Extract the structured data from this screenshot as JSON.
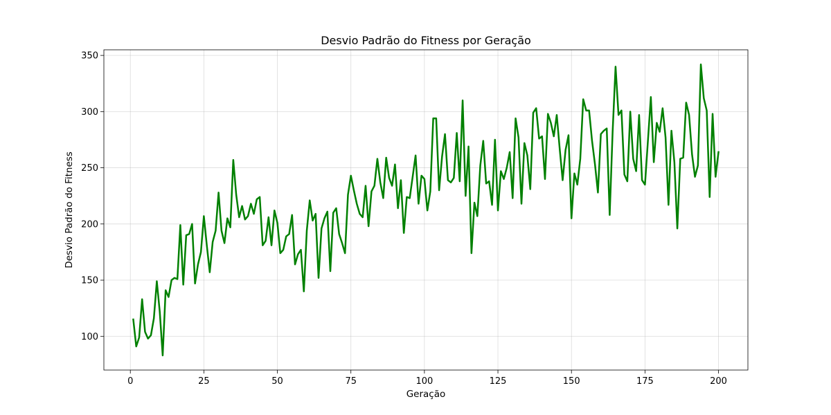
{
  "chart_data": {
    "type": "line",
    "title": "Desvio Padrão do Fitness por Geração",
    "xlabel": "Geração",
    "ylabel": "Desvio Padrão do Fitness",
    "xlim": [
      -9,
      210
    ],
    "ylim": [
      70,
      355
    ],
    "xticks": [
      0,
      25,
      50,
      75,
      100,
      125,
      150,
      175,
      200
    ],
    "yticks": [
      100,
      150,
      200,
      250,
      300,
      350
    ],
    "grid": true,
    "legend": "none",
    "series": [
      {
        "color": "#008000",
        "x": [
          1,
          2,
          3,
          4,
          5,
          6,
          7,
          8,
          9,
          10,
          11,
          12,
          13,
          14,
          15,
          16,
          17,
          18,
          19,
          20,
          21,
          22,
          23,
          24,
          25,
          26,
          27,
          28,
          29,
          30,
          31,
          32,
          33,
          34,
          35,
          36,
          37,
          38,
          39,
          40,
          41,
          42,
          43,
          44,
          45,
          46,
          47,
          48,
          49,
          50,
          51,
          52,
          53,
          54,
          55,
          56,
          57,
          58,
          59,
          60,
          61,
          62,
          63,
          64,
          65,
          66,
          67,
          68,
          69,
          70,
          71,
          72,
          73,
          74,
          75,
          76,
          77,
          78,
          79,
          80,
          81,
          82,
          83,
          84,
          85,
          86,
          87,
          88,
          89,
          90,
          91,
          92,
          93,
          94,
          95,
          96,
          97,
          98,
          99,
          100,
          101,
          102,
          103,
          104,
          105,
          106,
          107,
          108,
          109,
          110,
          111,
          112,
          113,
          114,
          115,
          116,
          117,
          118,
          119,
          120,
          121,
          122,
          123,
          124,
          125,
          126,
          127,
          128,
          129,
          130,
          131,
          132,
          133,
          134,
          135,
          136,
          137,
          138,
          139,
          140,
          141,
          142,
          143,
          144,
          145,
          146,
          147,
          148,
          149,
          150,
          151,
          152,
          153,
          154,
          155,
          156,
          157,
          158,
          159,
          160,
          161,
          162,
          163,
          164,
          165,
          166,
          167,
          168,
          169,
          170,
          171,
          172,
          173,
          174,
          175,
          176,
          177,
          178,
          179,
          180,
          181,
          182,
          183,
          184,
          185,
          186,
          187,
          188,
          189,
          190,
          191,
          192,
          193,
          194,
          195,
          196,
          197,
          198,
          199,
          200
        ],
        "y": [
          115,
          91,
          99,
          133,
          104,
          98,
          101,
          116,
          149,
          122,
          83,
          141,
          135,
          150,
          152,
          151,
          199,
          146,
          190,
          191,
          200,
          147,
          164,
          175,
          207,
          181,
          157,
          184,
          194,
          228,
          194,
          183,
          205,
          197,
          257,
          226,
          206,
          216,
          204,
          207,
          218,
          209,
          222,
          224,
          181,
          185,
          206,
          181,
          212,
          201,
          174,
          177,
          189,
          191,
          208,
          164,
          173,
          177,
          140,
          194,
          221,
          203,
          209,
          152,
          196,
          205,
          211,
          158,
          210,
          214,
          191,
          183,
          174,
          226,
          243,
          230,
          218,
          209,
          206,
          234,
          198,
          229,
          234,
          258,
          237,
          223,
          259,
          241,
          234,
          253,
          214,
          239,
          192,
          224,
          223,
          242,
          261,
          218,
          243,
          240,
          212,
          229,
          294,
          294,
          230,
          260,
          280,
          239,
          237,
          241,
          281,
          238,
          310,
          225,
          269,
          174,
          219,
          207,
          252,
          274,
          236,
          238,
          217,
          275,
          212,
          247,
          240,
          250,
          264,
          223,
          294,
          277,
          218,
          272,
          261,
          231,
          299,
          303,
          276,
          278,
          240,
          298,
          290,
          278,
          297,
          267,
          239,
          266,
          279,
          205,
          245,
          235,
          258,
          311,
          301,
          301,
          274,
          253,
          228,
          280,
          283,
          285,
          208,
          282,
          340,
          297,
          301,
          244,
          238,
          300,
          258,
          247,
          297,
          239,
          235,
          274,
          313,
          255,
          290,
          282,
          303,
          277,
          217,
          283,
          255,
          196,
          258,
          259,
          308,
          297,
          262,
          242,
          252,
          342,
          312,
          301,
          224,
          298,
          242,
          264
        ]
      }
    ]
  }
}
